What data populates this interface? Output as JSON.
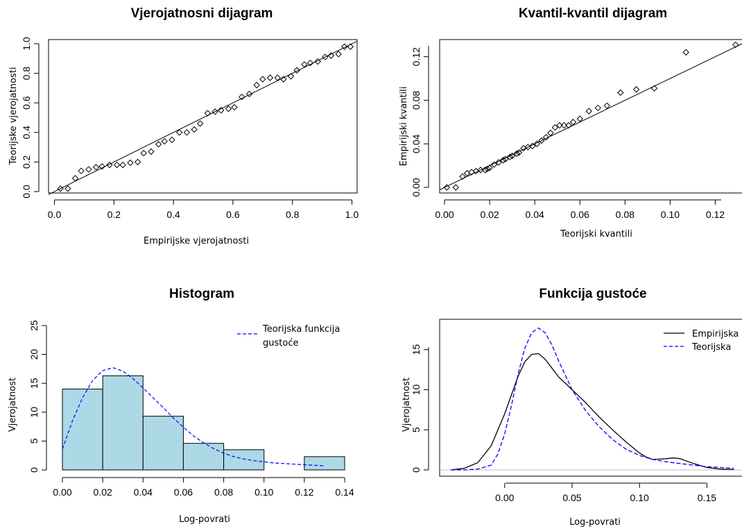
{
  "chart_data": [
    {
      "type": "scatter",
      "title": "Vjerojatnosni dijagram",
      "xlabel": "Empirijske vjerojatnosti",
      "ylabel": "Teorijske vjerojatnosti",
      "xlim": [
        0,
        1
      ],
      "ylim": [
        0,
        1
      ],
      "xticks": [
        "0.0",
        "0.2",
        "0.4",
        "0.6",
        "0.8",
        "1.0"
      ],
      "yticks": [
        "0.0",
        "0.2",
        "0.4",
        "0.6",
        "0.8",
        "1.0"
      ],
      "reference_line": {
        "slope": 1,
        "intercept": 0
      },
      "points": [
        [
          0.02,
          0.02
        ],
        [
          0.045,
          0.02
        ],
        [
          0.07,
          0.09
        ],
        [
          0.09,
          0.14
        ],
        [
          0.115,
          0.15
        ],
        [
          0.14,
          0.165
        ],
        [
          0.16,
          0.17
        ],
        [
          0.185,
          0.18
        ],
        [
          0.21,
          0.18
        ],
        [
          0.23,
          0.18
        ],
        [
          0.255,
          0.195
        ],
        [
          0.28,
          0.2
        ],
        [
          0.3,
          0.26
        ],
        [
          0.325,
          0.27
        ],
        [
          0.35,
          0.32
        ],
        [
          0.37,
          0.34
        ],
        [
          0.395,
          0.35
        ],
        [
          0.42,
          0.4
        ],
        [
          0.445,
          0.4
        ],
        [
          0.47,
          0.42
        ],
        [
          0.49,
          0.46
        ],
        [
          0.515,
          0.53
        ],
        [
          0.54,
          0.54
        ],
        [
          0.56,
          0.55
        ],
        [
          0.585,
          0.56
        ],
        [
          0.605,
          0.57
        ],
        [
          0.63,
          0.64
        ],
        [
          0.655,
          0.66
        ],
        [
          0.68,
          0.72
        ],
        [
          0.7,
          0.76
        ],
        [
          0.725,
          0.77
        ],
        [
          0.75,
          0.77
        ],
        [
          0.77,
          0.76
        ],
        [
          0.795,
          0.78
        ],
        [
          0.815,
          0.82
        ],
        [
          0.84,
          0.86
        ],
        [
          0.86,
          0.87
        ],
        [
          0.885,
          0.88
        ],
        [
          0.91,
          0.91
        ],
        [
          0.93,
          0.92
        ],
        [
          0.955,
          0.93
        ],
        [
          0.975,
          0.98
        ],
        [
          0.995,
          0.98
        ]
      ]
    },
    {
      "type": "scatter",
      "title": "Kvantil-kvantil dijagram",
      "xlabel": "Teorijski kvantili",
      "ylabel": "Empirijski kvantili",
      "xlim": [
        0,
        0.13
      ],
      "ylim": [
        0,
        0.13
      ],
      "xticks": [
        "0.00",
        "0.02",
        "0.04",
        "0.06",
        "0.08",
        "0.10",
        "0.12"
      ],
      "yticks": [
        "0.00",
        "0.04",
        "0.08",
        "0.12"
      ],
      "reference_line": {
        "slope": 1,
        "intercept": 0
      },
      "points": [
        [
          0.001,
          0.0
        ],
        [
          0.005,
          0.0
        ],
        [
          0.008,
          0.01
        ],
        [
          0.01,
          0.013
        ],
        [
          0.012,
          0.014
        ],
        [
          0.014,
          0.015
        ],
        [
          0.016,
          0.016
        ],
        [
          0.018,
          0.016
        ],
        [
          0.019,
          0.017
        ],
        [
          0.02,
          0.018
        ],
        [
          0.022,
          0.021
        ],
        [
          0.024,
          0.023
        ],
        [
          0.026,
          0.025
        ],
        [
          0.027,
          0.026
        ],
        [
          0.029,
          0.028
        ],
        [
          0.03,
          0.029
        ],
        [
          0.032,
          0.031
        ],
        [
          0.033,
          0.032
        ],
        [
          0.035,
          0.036
        ],
        [
          0.037,
          0.037
        ],
        [
          0.039,
          0.038
        ],
        [
          0.041,
          0.04
        ],
        [
          0.043,
          0.043
        ],
        [
          0.045,
          0.046
        ],
        [
          0.047,
          0.05
        ],
        [
          0.049,
          0.055
        ],
        [
          0.051,
          0.057
        ],
        [
          0.053,
          0.057
        ],
        [
          0.055,
          0.057
        ],
        [
          0.057,
          0.06
        ],
        [
          0.06,
          0.063
        ],
        [
          0.064,
          0.07
        ],
        [
          0.068,
          0.073
        ],
        [
          0.072,
          0.075
        ],
        [
          0.078,
          0.087
        ],
        [
          0.085,
          0.09
        ],
        [
          0.093,
          0.091
        ],
        [
          0.107,
          0.124
        ],
        [
          0.129,
          0.131
        ]
      ]
    },
    {
      "type": "bar",
      "title": "Histogram",
      "xlabel": "Log-povrati",
      "ylabel": "Vjerojatnost",
      "xlim": [
        0,
        0.14
      ],
      "ylim": [
        0,
        25
      ],
      "xticks": [
        "0.00",
        "0.02",
        "0.04",
        "0.06",
        "0.08",
        "0.10",
        "0.12",
        "0.14"
      ],
      "yticks": [
        "0",
        "5",
        "10",
        "15",
        "20",
        "25"
      ],
      "bins": [
        {
          "from": 0.0,
          "to": 0.02,
          "value": 14.0
        },
        {
          "from": 0.02,
          "to": 0.04,
          "value": 16.3
        },
        {
          "from": 0.04,
          "to": 0.06,
          "value": 9.3
        },
        {
          "from": 0.06,
          "to": 0.08,
          "value": 4.6
        },
        {
          "from": 0.08,
          "to": 0.1,
          "value": 3.5
        },
        {
          "from": 0.12,
          "to": 0.14,
          "value": 2.3
        }
      ],
      "bar_color": "#add8e6",
      "series": [
        {
          "name": "Teorijska funkcija gustoće",
          "color": "#0000ff",
          "dash": true,
          "x": [
            0.0,
            0.005,
            0.01,
            0.015,
            0.02,
            0.025,
            0.03,
            0.035,
            0.04,
            0.045,
            0.05,
            0.055,
            0.06,
            0.065,
            0.07,
            0.075,
            0.08,
            0.085,
            0.09,
            0.095,
            0.1,
            0.105,
            0.11,
            0.115,
            0.12,
            0.125,
            0.13
          ],
          "y": [
            3.6,
            8.5,
            12.5,
            15.5,
            17.2,
            17.7,
            17.1,
            15.8,
            14.2,
            12.5,
            10.8,
            9.0,
            7.4,
            5.9,
            4.7,
            3.7,
            2.9,
            2.3,
            1.9,
            1.6,
            1.4,
            1.2,
            1.1,
            1.0,
            0.9,
            0.8,
            0.7
          ]
        }
      ],
      "legend": {
        "position": "top-right",
        "lines": [
          "Teorijska funkcija",
          "gustoće"
        ]
      }
    },
    {
      "type": "line",
      "title": "Funkcija gustoće",
      "xlabel": "Log-povrati",
      "ylabel": "Vjerojatnost",
      "xlim": [
        -0.04,
        0.175
      ],
      "ylim": [
        0,
        18
      ],
      "xticks": [
        {
          "v": 0.0,
          "t": "0.00"
        },
        {
          "v": 0.05,
          "t": "0.05"
        },
        {
          "v": 0.1,
          "t": "0.10"
        },
        {
          "v": 0.15,
          "t": "0.15"
        }
      ],
      "yticks": [
        {
          "v": 0,
          "t": "0"
        },
        {
          "v": 5,
          "t": "5"
        },
        {
          "v": 10,
          "t": "10"
        },
        {
          "v": 15,
          "t": "15"
        }
      ],
      "series": [
        {
          "name": "Empirijska",
          "color": "#000000",
          "dash": false,
          "x": [
            -0.04,
            -0.03,
            -0.02,
            -0.01,
            0.0,
            0.01,
            0.015,
            0.02,
            0.025,
            0.03,
            0.035,
            0.04,
            0.05,
            0.06,
            0.07,
            0.08,
            0.09,
            0.1,
            0.105,
            0.11,
            0.115,
            0.12,
            0.125,
            0.13,
            0.14,
            0.15,
            0.16,
            0.17
          ],
          "y": [
            0.0,
            0.2,
            0.9,
            3.0,
            7.0,
            11.7,
            13.5,
            14.4,
            14.5,
            13.8,
            12.7,
            11.6,
            10.0,
            8.4,
            6.6,
            5.0,
            3.5,
            2.1,
            1.6,
            1.3,
            1.35,
            1.4,
            1.5,
            1.4,
            0.8,
            0.3,
            0.1,
            0.05
          ]
        },
        {
          "name": "Teorijska",
          "color": "#0000ff",
          "dash": true,
          "x": [
            -0.04,
            -0.03,
            -0.02,
            -0.01,
            -0.005,
            0.0,
            0.005,
            0.01,
            0.015,
            0.02,
            0.025,
            0.03,
            0.035,
            0.04,
            0.05,
            0.06,
            0.07,
            0.08,
            0.09,
            0.1,
            0.11,
            0.12,
            0.13,
            0.14,
            0.15,
            0.16,
            0.17
          ],
          "y": [
            0.0,
            0.0,
            0.1,
            0.6,
            2.0,
            4.5,
            8.0,
            12.0,
            15.2,
            17.1,
            17.7,
            17.1,
            15.6,
            13.6,
            10.0,
            7.4,
            5.4,
            3.8,
            2.6,
            1.8,
            1.3,
            1.0,
            0.8,
            0.6,
            0.4,
            0.3,
            0.2
          ]
        }
      ],
      "legend": {
        "position": "top-right"
      }
    }
  ]
}
